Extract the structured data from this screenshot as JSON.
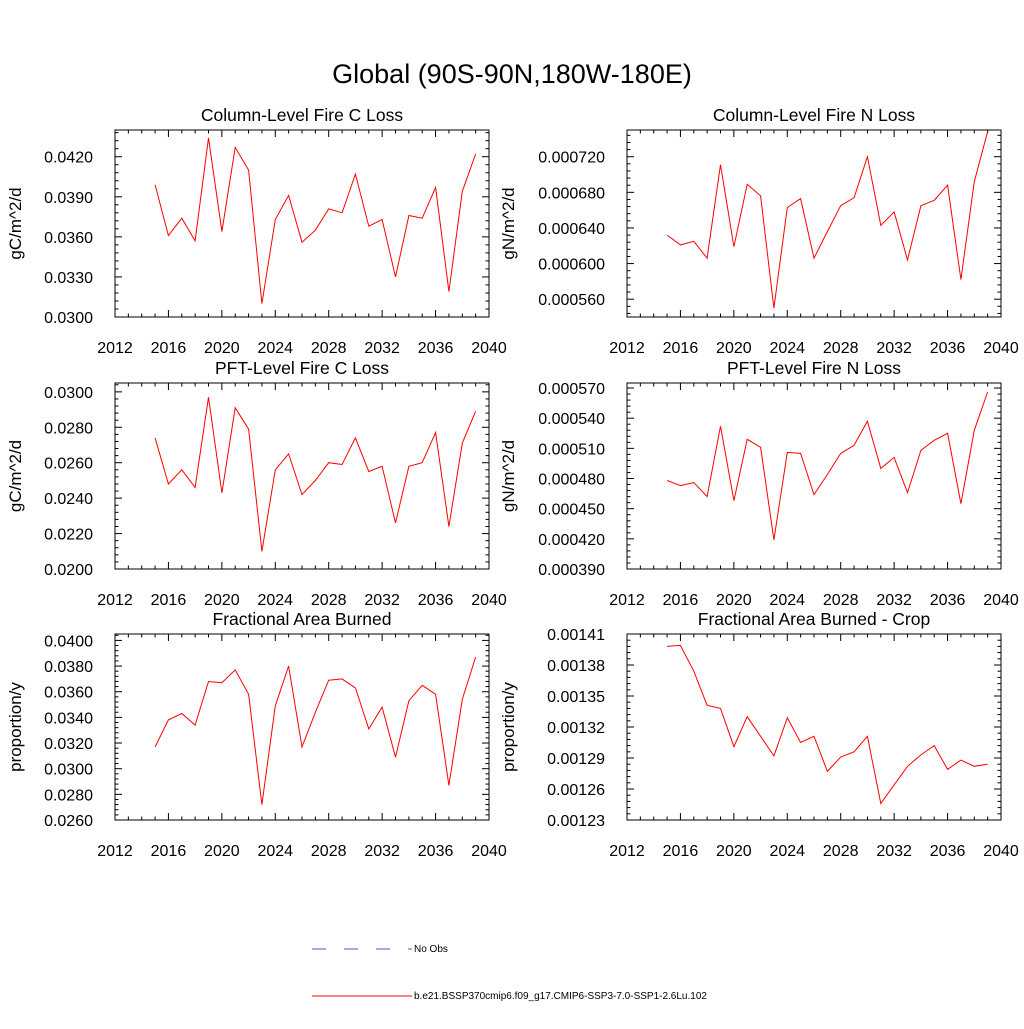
{
  "main_title": "Global (90S-90N,180W-180E)",
  "legend": {
    "obs_label": "No Obs",
    "obs_color": "#4a5bd6",
    "model_label": "b.e21.BSSP370cmip6.f09_g17.CMIP6-SSP3-7.0-SSP1-2.6Lu.102",
    "model_color": "#ff0000"
  },
  "chart_data": [
    {
      "type": "line",
      "title": "Column-Level Fire C Loss",
      "xlabel": "",
      "ylabel": "gC/m^2/d",
      "xlim": [
        2012,
        2040
      ],
      "ylim": [
        0.03,
        0.044
      ],
      "x_ticks": [
        "2012",
        "2016",
        "2020",
        "2024",
        "2028",
        "2032",
        "2036",
        "2040"
      ],
      "y_ticks": [
        "0.0300",
        "0.0330",
        "0.0360",
        "0.0390",
        "0.0420"
      ],
      "y_tick_values": [
        0.03,
        0.033,
        0.036,
        0.039,
        0.042
      ],
      "series": [
        {
          "color": "#ff0000",
          "x": [
            2015,
            2016,
            2017,
            2018,
            2019,
            2020,
            2021,
            2022,
            2023,
            2024,
            2025,
            2026,
            2027,
            2028,
            2029,
            2030,
            2031,
            2032,
            2033,
            2034,
            2035,
            2036,
            2037,
            2038,
            2039
          ],
          "values": [
            0.0399,
            0.0361,
            0.0374,
            0.0357,
            0.0434,
            0.0364,
            0.0427,
            0.041,
            0.031,
            0.0373,
            0.0391,
            0.0356,
            0.0365,
            0.0381,
            0.0378,
            0.0407,
            0.0368,
            0.0373,
            0.033,
            0.0376,
            0.0374,
            0.0397,
            0.0319,
            0.0394,
            0.0422
          ]
        }
      ]
    },
    {
      "type": "line",
      "title": "Column-Level Fire N Loss",
      "xlabel": "",
      "ylabel": "gN/m^2/d",
      "xlim": [
        2012,
        2040
      ],
      "ylim": [
        0.00054,
        0.00075
      ],
      "x_ticks": [
        "2012",
        "2016",
        "2020",
        "2024",
        "2028",
        "2032",
        "2036",
        "2040"
      ],
      "y_ticks": [
        "0.000560",
        "0.000600",
        "0.000640",
        "0.000680",
        "0.000720"
      ],
      "y_tick_values": [
        0.00056,
        0.0006,
        0.00064,
        0.00068,
        0.00072
      ],
      "series": [
        {
          "color": "#ff0000",
          "x": [
            2015,
            2016,
            2017,
            2018,
            2019,
            2020,
            2021,
            2022,
            2023,
            2024,
            2025,
            2026,
            2027,
            2028,
            2029,
            2030,
            2031,
            2032,
            2033,
            2034,
            2035,
            2036,
            2037,
            2038,
            2039
          ],
          "values": [
            0.000632,
            0.000621,
            0.000625,
            0.000606,
            0.000711,
            0.000619,
            0.000689,
            0.000676,
            0.00055,
            0.000663,
            0.000673,
            0.000606,
            0.000636,
            0.000665,
            0.000674,
            0.00072,
            0.000643,
            0.000658,
            0.000604,
            0.000665,
            0.000671,
            0.000688,
            0.000582,
            0.000692,
            0.000748
          ]
        }
      ]
    },
    {
      "type": "line",
      "title": "PFT-Level Fire C Loss",
      "xlabel": "",
      "ylabel": "gC/m^2/d",
      "xlim": [
        2012,
        2040
      ],
      "ylim": [
        0.02,
        0.0305
      ],
      "x_ticks": [
        "2012",
        "2016",
        "2020",
        "2024",
        "2028",
        "2032",
        "2036",
        "2040"
      ],
      "y_ticks": [
        "0.0200",
        "0.0220",
        "0.0240",
        "0.0260",
        "0.0280",
        "0.0300"
      ],
      "y_tick_values": [
        0.02,
        0.022,
        0.024,
        0.026,
        0.028,
        0.03
      ],
      "series": [
        {
          "color": "#ff0000",
          "x": [
            2015,
            2016,
            2017,
            2018,
            2019,
            2020,
            2021,
            2022,
            2023,
            2024,
            2025,
            2026,
            2027,
            2028,
            2029,
            2030,
            2031,
            2032,
            2033,
            2034,
            2035,
            2036,
            2037,
            2038,
            2039
          ],
          "values": [
            0.0274,
            0.0248,
            0.0256,
            0.0246,
            0.0297,
            0.0243,
            0.0291,
            0.0279,
            0.021,
            0.0256,
            0.0265,
            0.0242,
            0.025,
            0.026,
            0.0259,
            0.0274,
            0.0255,
            0.0258,
            0.0226,
            0.0258,
            0.026,
            0.0277,
            0.0224,
            0.0271,
            0.0289
          ]
        }
      ]
    },
    {
      "type": "line",
      "title": "PFT-Level Fire N Loss",
      "xlabel": "",
      "ylabel": "gN/m^2/d",
      "xlim": [
        2012,
        2040
      ],
      "ylim": [
        0.00039,
        0.000575
      ],
      "x_ticks": [
        "2012",
        "2016",
        "2020",
        "2024",
        "2028",
        "2032",
        "2036",
        "2040"
      ],
      "y_ticks": [
        "0.000390",
        "0.000420",
        "0.000450",
        "0.000480",
        "0.000510",
        "0.000540",
        "0.000570"
      ],
      "y_tick_values": [
        0.00039,
        0.00042,
        0.00045,
        0.00048,
        0.00051,
        0.00054,
        0.00057
      ],
      "series": [
        {
          "color": "#ff0000",
          "x": [
            2015,
            2016,
            2017,
            2018,
            2019,
            2020,
            2021,
            2022,
            2023,
            2024,
            2025,
            2026,
            2027,
            2028,
            2029,
            2030,
            2031,
            2032,
            2033,
            2034,
            2035,
            2036,
            2037,
            2038,
            2039
          ],
          "values": [
            0.000478,
            0.000473,
            0.000476,
            0.000462,
            0.000532,
            0.000458,
            0.000519,
            0.000511,
            0.000419,
            0.000506,
            0.000505,
            0.000464,
            0.000484,
            0.000505,
            0.000513,
            0.000537,
            0.00049,
            0.000501,
            0.000466,
            0.000508,
            0.000518,
            0.000525,
            0.000455,
            0.000528,
            0.000566
          ]
        }
      ]
    },
    {
      "type": "line",
      "title": "Fractional Area Burned",
      "xlabel": "",
      "ylabel": "proportion/y",
      "xlim": [
        2012,
        2040
      ],
      "ylim": [
        0.026,
        0.0405
      ],
      "x_ticks": [
        "2012",
        "2016",
        "2020",
        "2024",
        "2028",
        "2032",
        "2036",
        "2040"
      ],
      "y_ticks": [
        "0.0260",
        "0.0280",
        "0.0300",
        "0.0320",
        "0.0340",
        "0.0360",
        "0.0380",
        "0.0400"
      ],
      "y_tick_values": [
        0.026,
        0.028,
        0.03,
        0.032,
        0.034,
        0.036,
        0.038,
        0.04
      ],
      "series": [
        {
          "color": "#ff0000",
          "x": [
            2015,
            2016,
            2017,
            2018,
            2019,
            2020,
            2021,
            2022,
            2023,
            2024,
            2025,
            2026,
            2027,
            2028,
            2029,
            2030,
            2031,
            2032,
            2033,
            2034,
            2035,
            2036,
            2037,
            2038,
            2039
          ],
          "values": [
            0.0317,
            0.0338,
            0.0343,
            0.0334,
            0.0368,
            0.0367,
            0.0377,
            0.0358,
            0.0272,
            0.0349,
            0.038,
            0.0317,
            0.0344,
            0.0369,
            0.037,
            0.0363,
            0.0331,
            0.0348,
            0.0309,
            0.0353,
            0.0365,
            0.0358,
            0.0287,
            0.0354,
            0.0387
          ]
        }
      ]
    },
    {
      "type": "line",
      "title": "Fractional Area Burned - Crop",
      "xlabel": "",
      "ylabel": "proportion/y",
      "xlim": [
        2012,
        2040
      ],
      "ylim": [
        0.00123,
        0.00141
      ],
      "x_ticks": [
        "2012",
        "2016",
        "2020",
        "2024",
        "2028",
        "2032",
        "2036",
        "2040"
      ],
      "y_ticks": [
        "0.00123",
        "0.00126",
        "0.00129",
        "0.00132",
        "0.00135",
        "0.00138",
        "0.00141"
      ],
      "y_tick_values": [
        0.00123,
        0.00126,
        0.00129,
        0.00132,
        0.00135,
        0.00138,
        0.00141
      ],
      "series": [
        {
          "color": "#ff0000",
          "x": [
            2015,
            2016,
            2017,
            2018,
            2019,
            2020,
            2021,
            2022,
            2023,
            2024,
            2025,
            2026,
            2027,
            2028,
            2029,
            2030,
            2031,
            2032,
            2033,
            2034,
            2035,
            2036,
            2037,
            2038,
            2039
          ],
          "values": [
            0.001398,
            0.001399,
            0.001374,
            0.001341,
            0.001338,
            0.001301,
            0.00133,
            0.001311,
            0.001292,
            0.001329,
            0.001305,
            0.001311,
            0.001277,
            0.001291,
            0.001296,
            0.001311,
            0.001246,
            0.001264,
            0.001282,
            0.001293,
            0.001302,
            0.001279,
            0.001288,
            0.001282,
            0.001284
          ]
        }
      ]
    }
  ]
}
